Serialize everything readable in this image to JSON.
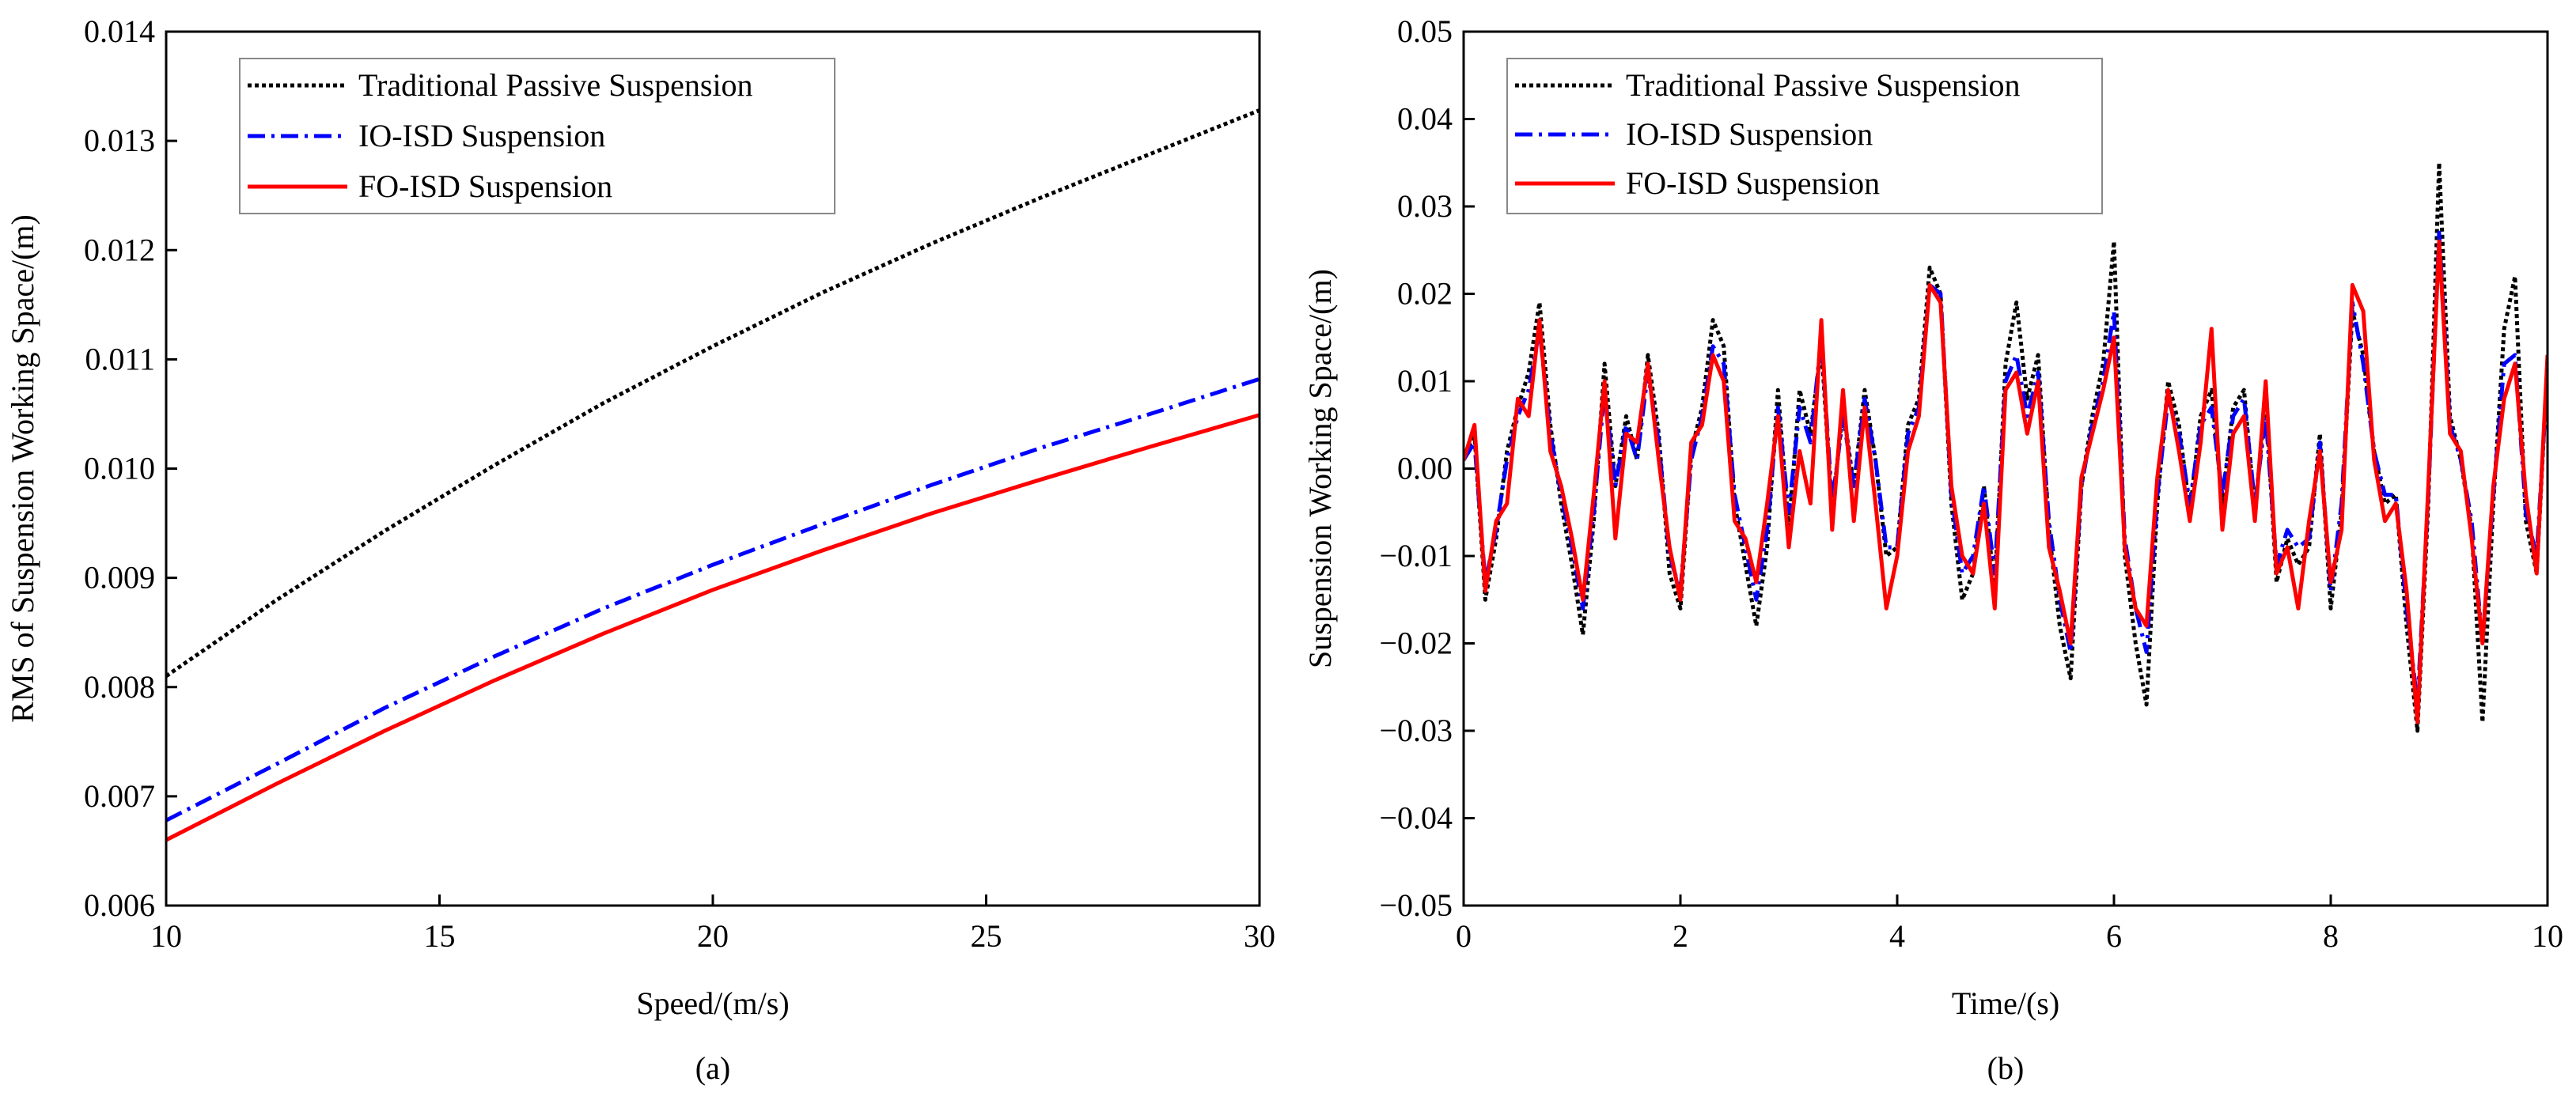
{
  "chart_data": [
    {
      "panel": "(a)",
      "type": "line",
      "xlabel": "Speed/(m/s)",
      "ylabel": "RMS of Suspension Working Space/(m)",
      "xlim": [
        10,
        30
      ],
      "ylim": [
        0.006,
        0.014
      ],
      "xticks": [
        "10",
        "15",
        "20",
        "25",
        "30"
      ],
      "yticks": [
        "0.006",
        "0.007",
        "0.008",
        "0.009",
        "0.010",
        "0.011",
        "0.012",
        "0.013",
        "0.014"
      ],
      "grid": false,
      "legend_position": "top-left",
      "x": [
        10,
        12,
        14,
        16,
        18,
        20,
        22,
        24,
        26,
        28,
        30
      ],
      "series": [
        {
          "name": "Traditional Passive Suspension",
          "color": "#000000",
          "style": "dotted",
          "values": [
            0.0081,
            0.00879,
            0.00943,
            0.01003,
            0.0106,
            0.01112,
            0.01161,
            0.01206,
            0.01248,
            0.01288,
            0.01328
          ]
        },
        {
          "name": "IO-ISD Suspension",
          "color": "#0000ff",
          "style": "dashdot",
          "values": [
            0.00678,
            0.00729,
            0.00781,
            0.00828,
            0.00872,
            0.00912,
            0.00949,
            0.00985,
            0.01019,
            0.0105,
            0.01082
          ]
        },
        {
          "name": "FO-ISD Suspension",
          "color": "#ff0000",
          "style": "solid",
          "values": [
            0.0066,
            0.00711,
            0.0076,
            0.00806,
            0.00849,
            0.00889,
            0.00925,
            0.00959,
            0.0099,
            0.0102,
            0.01049
          ]
        }
      ]
    },
    {
      "panel": "(b)",
      "type": "line",
      "xlabel": "Time/(s)",
      "ylabel": "Suspension Working Space/(m)",
      "xlim": [
        0,
        10
      ],
      "ylim": [
        -0.05,
        0.05
      ],
      "xticks": [
        "0",
        "2",
        "4",
        "6",
        "8",
        "10"
      ],
      "yticks": [
        "−0.05",
        "−0.04",
        "−0.03",
        "−0.02",
        "−0.01",
        "0.00",
        "0.01",
        "0.02",
        "0.03",
        "0.04",
        "0.05"
      ],
      "grid": false,
      "legend_position": "top-left",
      "x": [
        0,
        0.1,
        0.2,
        0.3,
        0.4,
        0.5,
        0.6,
        0.7,
        0.8,
        0.9,
        1.0,
        1.1,
        1.2,
        1.3,
        1.4,
        1.5,
        1.6,
        1.7,
        1.8,
        1.9,
        2.0,
        2.1,
        2.2,
        2.3,
        2.4,
        2.5,
        2.6,
        2.7,
        2.8,
        2.9,
        3.0,
        3.1,
        3.2,
        3.3,
        3.4,
        3.5,
        3.6,
        3.7,
        3.8,
        3.9,
        4.0,
        4.1,
        4.2,
        4.3,
        4.4,
        4.5,
        4.6,
        4.7,
        4.8,
        4.9,
        5.0,
        5.1,
        5.2,
        5.3,
        5.4,
        5.5,
        5.6,
        5.7,
        5.8,
        5.9,
        6.0,
        6.1,
        6.2,
        6.3,
        6.4,
        6.5,
        6.6,
        6.7,
        6.8,
        6.9,
        7.0,
        7.1,
        7.2,
        7.3,
        7.4,
        7.5,
        7.6,
        7.7,
        7.8,
        7.9,
        8.0,
        8.1,
        8.2,
        8.3,
        8.4,
        8.5,
        8.6,
        8.7,
        8.8,
        8.9,
        9.0,
        9.1,
        9.2,
        9.3,
        9.4,
        9.5,
        9.6,
        9.7,
        9.8,
        9.9,
        10.0
      ],
      "series": [
        {
          "name": "Traditional Passive Suspension",
          "color": "#000000",
          "style": "dotted",
          "values": [
            0.001,
            0.004,
            -0.015,
            -0.008,
            0.002,
            0.007,
            0.011,
            0.019,
            0.005,
            -0.004,
            -0.011,
            -0.019,
            -0.006,
            0.012,
            -0.002,
            0.006,
            0.001,
            0.013,
            0.004,
            -0.012,
            -0.016,
            0.002,
            0.007,
            0.017,
            0.014,
            -0.004,
            -0.011,
            -0.018,
            -0.009,
            0.009,
            -0.007,
            0.009,
            0.004,
            0.014,
            -0.005,
            0.007,
            -0.002,
            0.009,
            0.001,
            -0.01,
            -0.009,
            0.005,
            0.008,
            0.023,
            0.02,
            -0.004,
            -0.015,
            -0.012,
            -0.002,
            -0.014,
            0.012,
            0.019,
            0.008,
            0.013,
            -0.007,
            -0.018,
            -0.024,
            -0.002,
            0.006,
            0.012,
            0.026,
            -0.01,
            -0.02,
            -0.027,
            -0.004,
            0.01,
            0.005,
            -0.005,
            0.006,
            0.009,
            -0.004,
            0.007,
            0.009,
            -0.005,
            0.008,
            -0.013,
            -0.008,
            -0.011,
            -0.009,
            0.004,
            -0.016,
            -0.005,
            0.018,
            0.013,
            0.002,
            -0.004,
            -0.003,
            -0.018,
            -0.03,
            -0.004,
            0.035,
            0.006,
            0.001,
            -0.007,
            -0.029,
            -0.004,
            0.016,
            0.022,
            -0.006,
            -0.012,
            0.012
          ]
        },
        {
          "name": "IO-ISD Suspension",
          "color": "#0000ff",
          "style": "dashdot",
          "values": [
            0.001,
            0.003,
            -0.013,
            -0.007,
            0.001,
            0.006,
            0.009,
            0.016,
            0.004,
            -0.003,
            -0.009,
            -0.016,
            -0.005,
            0.009,
            -0.002,
            0.005,
            0.001,
            0.011,
            0.003,
            -0.01,
            -0.014,
            0.001,
            0.006,
            0.014,
            0.012,
            -0.003,
            -0.009,
            -0.015,
            -0.007,
            0.007,
            -0.005,
            0.007,
            0.003,
            0.015,
            -0.004,
            0.006,
            -0.002,
            0.008,
            0.001,
            -0.009,
            -0.009,
            0.004,
            0.007,
            0.021,
            0.02,
            -0.003,
            -0.012,
            -0.01,
            -0.002,
            -0.012,
            0.01,
            0.013,
            0.006,
            0.011,
            -0.006,
            -0.015,
            -0.021,
            -0.002,
            0.005,
            0.01,
            0.018,
            -0.008,
            -0.016,
            -0.021,
            -0.003,
            0.008,
            0.004,
            -0.004,
            0.005,
            0.007,
            -0.003,
            0.006,
            0.008,
            -0.004,
            0.006,
            -0.011,
            -0.007,
            -0.009,
            -0.008,
            0.003,
            -0.014,
            -0.004,
            0.019,
            0.012,
            0.002,
            -0.003,
            -0.003,
            -0.016,
            -0.027,
            -0.003,
            0.027,
            0.005,
            0.001,
            -0.006,
            -0.02,
            -0.003,
            0.012,
            0.013,
            -0.005,
            -0.01,
            0.011
          ]
        },
        {
          "name": "FO-ISD Suspension",
          "color": "#ff0000",
          "style": "solid",
          "values": [
            0.001,
            0.005,
            -0.014,
            -0.006,
            -0.004,
            0.008,
            0.006,
            0.017,
            0.002,
            -0.002,
            -0.008,
            -0.015,
            -0.003,
            0.01,
            -0.008,
            0.004,
            0.003,
            0.012,
            0.001,
            -0.009,
            -0.015,
            0.003,
            0.005,
            0.013,
            0.01,
            -0.006,
            -0.008,
            -0.013,
            -0.004,
            0.006,
            -0.009,
            0.002,
            -0.004,
            0.017,
            -0.007,
            0.009,
            -0.006,
            0.007,
            -0.004,
            -0.016,
            -0.01,
            0.002,
            0.006,
            0.021,
            0.019,
            -0.002,
            -0.01,
            -0.012,
            -0.004,
            -0.016,
            0.009,
            0.011,
            0.004,
            0.01,
            -0.009,
            -0.014,
            -0.02,
            -0.001,
            0.004,
            0.009,
            0.015,
            -0.009,
            -0.016,
            -0.018,
            -0.001,
            0.009,
            0.002,
            -0.006,
            0.003,
            0.016,
            -0.007,
            0.004,
            0.006,
            -0.006,
            0.01,
            -0.012,
            -0.009,
            -0.016,
            -0.006,
            0.002,
            -0.013,
            -0.007,
            0.021,
            0.018,
            0.001,
            -0.006,
            -0.004,
            -0.014,
            -0.029,
            -0.002,
            0.026,
            0.004,
            0.002,
            -0.008,
            -0.02,
            -0.002,
            0.008,
            0.012,
            -0.003,
            -0.012,
            0.013
          ]
        }
      ]
    }
  ]
}
